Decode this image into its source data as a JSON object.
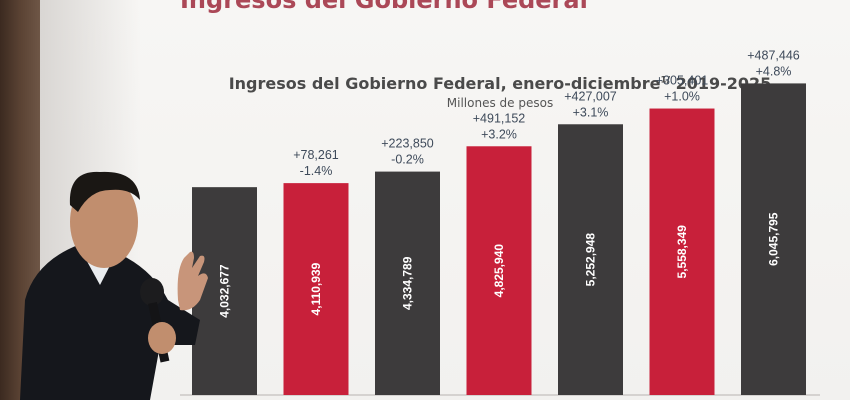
{
  "slide": {
    "top_title": "Ingresos del Gobierno Federal",
    "chart_title": "Ingresos del Gobierno Federal, enero-diciembre",
    "chart_title_note": "1/",
    "chart_title_years": "2019-2025",
    "chart_subtitle": "Millones de pesos"
  },
  "chart_data": {
    "type": "bar",
    "title": "Ingresos del Gobierno Federal, enero-diciembre 2019-2025",
    "subtitle": "Millones de pesos",
    "categories": [
      "",
      "",
      "",
      "",
      "",
      "",
      ""
    ],
    "values": [
      4032677,
      4110939,
      4334789,
      4825940,
      5252948,
      5558349,
      6045795
    ],
    "value_labels": [
      "4,032,677",
      "4,110,939",
      "4,334,789",
      "4,825,940",
      "5,252,948",
      "5,558,349",
      "6,045,795"
    ],
    "change_abs": [
      "",
      "+78,261",
      "+223,850",
      "+491,152",
      "+427,007",
      "+305,401",
      "+487,446"
    ],
    "change_pct": [
      "",
      "-1.4%",
      "-0.2%",
      "+3.2%",
      "+3.1%",
      "+1.0%",
      "+4.8%"
    ],
    "bar_colors": [
      "#3d3b3c",
      "#c8203a",
      "#3d3b3c",
      "#c8203a",
      "#3d3b3c",
      "#c8203a",
      "#3d3b3c"
    ],
    "label_color": "#3e4a5a",
    "ylim": [
      0,
      6500000
    ],
    "grid": false,
    "legend": "none"
  }
}
